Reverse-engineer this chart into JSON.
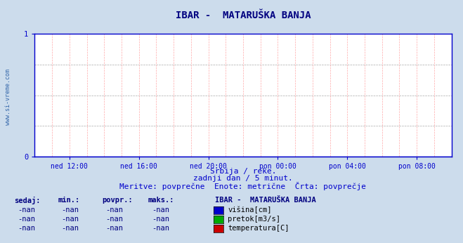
{
  "title": "IBAR -  MATARUŠKA BANJA",
  "title_color": "#000080",
  "title_fontsize": 10,
  "bg_color": "#ccdcec",
  "plot_bg_color": "#ffffff",
  "watermark": "www.si-vreme.com",
  "ylim": [
    0,
    1
  ],
  "yticks": [
    0,
    1
  ],
  "xlim": [
    0,
    288
  ],
  "x_tick_positions": [
    24,
    72,
    120,
    168,
    216,
    264
  ],
  "x_tick_labels": [
    "ned 12:00",
    "ned 16:00",
    "ned 20:00",
    "pon 00:00",
    "pon 04:00",
    "pon 08:00"
  ],
  "x_tick_color": "#0000cc",
  "y_tick_color": "#0000cc",
  "grid_color_h": "#aaaaaa",
  "grid_color_v": "#ffaaaa",
  "grid_style": "--",
  "subtitle1": "Srbija / reke.",
  "subtitle2": "zadnji dan / 5 minut.",
  "subtitle3": "Meritve: povprečne  Enote: metrične  Črta: povprečje",
  "subtitle_color": "#0000cc",
  "subtitle_fontsize": 8,
  "legend_title": "IBAR -  MATARUŠKA BANJA",
  "legend_title_color": "#000080",
  "legend_items": [
    {
      "label": "višina[cm]",
      "color": "#0000cc"
    },
    {
      "label": "pretok[m3/s]",
      "color": "#00aa00"
    },
    {
      "label": "temperatura[C]",
      "color": "#cc0000"
    }
  ],
  "table_headers": [
    "sedaj:",
    "min.:",
    "povpr.:",
    "maks.:"
  ],
  "table_values": [
    "-nan",
    "-nan",
    "-nan",
    "-nan"
  ],
  "table_header_color": "#000080",
  "table_value_color": "#000080",
  "arrow_color": "#880000",
  "line_color": "#0000cc",
  "axis_line_color": "#0000cc",
  "watermark_color": "#3366aa"
}
